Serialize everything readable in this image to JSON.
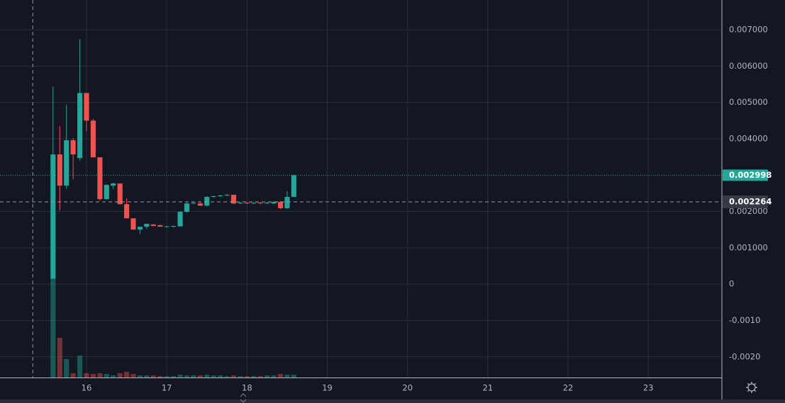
{
  "chart_data": {
    "type": "candlestick",
    "x": [
      15.583,
      15.667,
      15.75,
      15.833,
      15.917,
      16.0,
      16.083,
      16.167,
      16.25,
      16.333,
      16.417,
      16.5,
      16.583,
      16.667,
      16.75,
      16.833,
      16.917,
      17.0,
      17.083,
      17.167,
      17.25,
      17.333,
      17.417,
      17.5,
      17.583,
      17.667,
      17.75,
      17.833,
      17.917,
      18.0,
      18.083,
      18.167,
      18.25,
      18.333,
      18.417,
      18.5,
      18.583
    ],
    "open": [
      0.00015,
      0.00357,
      0.00271,
      0.00396,
      0.00347,
      0.00526,
      0.0045,
      0.00349,
      0.00234,
      0.00271,
      0.00277,
      0.0022,
      0.00181,
      0.0015,
      0.00158,
      0.00164,
      0.00162,
      0.00158,
      0.00158,
      0.00159,
      0.00199,
      0.00222,
      0.00222,
      0.00216,
      0.0024,
      0.00242,
      0.00244,
      0.00246,
      0.00222,
      0.00224,
      0.00222,
      0.00224,
      0.00222,
      0.00222,
      0.00226,
      0.00209,
      0.0024
    ],
    "high": [
      0.00544,
      0.00435,
      0.00493,
      0.00402,
      0.00674,
      0.00526,
      0.00455,
      0.00349,
      0.00275,
      0.00279,
      0.00277,
      0.00236,
      0.00181,
      0.00156,
      0.00166,
      0.00166,
      0.00164,
      0.0016,
      0.0016,
      0.00201,
      0.00224,
      0.00224,
      0.00224,
      0.00242,
      0.00244,
      0.00246,
      0.00248,
      0.00246,
      0.00226,
      0.00226,
      0.00226,
      0.00226,
      0.00226,
      0.00228,
      0.00228,
      0.00256,
      0.003
    ],
    "low": [
      0.00015,
      0.00203,
      0.00262,
      0.00288,
      0.0034,
      0.00421,
      0.00349,
      0.0023,
      0.00232,
      0.00262,
      0.0022,
      0.00181,
      0.0015,
      0.00138,
      0.00152,
      0.0016,
      0.00158,
      0.00156,
      0.00156,
      0.00158,
      0.00197,
      0.0022,
      0.00216,
      0.00214,
      0.00238,
      0.0024,
      0.00242,
      0.0022,
      0.0022,
      0.0022,
      0.0022,
      0.0022,
      0.0022,
      0.0022,
      0.00207,
      0.00207,
      0.0024
    ],
    "close": [
      0.00357,
      0.00271,
      0.00396,
      0.00357,
      0.00526,
      0.0045,
      0.00349,
      0.00234,
      0.00273,
      0.00277,
      0.0022,
      0.00181,
      0.0015,
      0.00158,
      0.00166,
      0.0016,
      0.00158,
      0.00159,
      0.0016,
      0.00199,
      0.00222,
      0.00224,
      0.00216,
      0.0024,
      0.00242,
      0.00244,
      0.00246,
      0.00222,
      0.00224,
      0.00222,
      0.00224,
      0.00222,
      0.00224,
      0.00226,
      0.00209,
      0.0024,
      0.002998
    ],
    "volume": [
      140,
      56,
      26,
      6,
      31,
      6,
      5,
      6,
      5,
      3,
      6,
      8,
      5,
      3,
      3,
      3,
      2,
      2,
      2,
      4,
      3,
      3,
      3,
      4,
      3,
      3,
      2,
      3,
      2,
      2,
      2,
      2,
      3,
      3,
      5,
      4,
      4
    ],
    "up_color": "#26a69a",
    "down_color": "#ef5350",
    "xlim": [
      14.922,
      23.917
    ],
    "xticks": [
      16,
      17,
      18,
      19,
      20,
      21,
      22,
      23
    ],
    "ylim": [
      -0.00257,
      0.00782
    ],
    "yticks": [
      {
        "value": 0.007,
        "label": "0.007000"
      },
      {
        "value": 0.006,
        "label": "0.006000"
      },
      {
        "value": 0.005,
        "label": "0.005000"
      },
      {
        "value": 0.004,
        "label": "0.004000"
      },
      {
        "value": 0.002,
        "label": "0.002000"
      },
      {
        "value": 0.001,
        "label": "0.001000"
      },
      0,
      {
        "value": -0.001,
        "label": "-0.0010"
      },
      {
        "value": -0.002,
        "label": "-0.0020"
      }
    ],
    "grid": true,
    "last_price": {
      "value": 0.002998,
      "label": "0.002998"
    },
    "crosshair": {
      "x": 15.33,
      "price": {
        "value": 0.002264,
        "label": "0.002264"
      }
    }
  }
}
